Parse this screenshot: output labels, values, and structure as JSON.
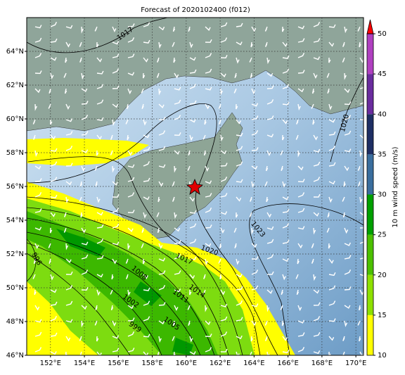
{
  "map": {
    "title": "Forecast of 2020102400 (f012)",
    "xlim": [
      150.6,
      170.45
    ],
    "ylim": [
      46,
      66
    ],
    "xticks": [
      {
        "value": 152,
        "label": "152°E"
      },
      {
        "value": 154,
        "label": "154°E"
      },
      {
        "value": 156,
        "label": "156°E"
      },
      {
        "value": 158,
        "label": "158°E"
      },
      {
        "value": 160,
        "label": "160°E"
      },
      {
        "value": 162,
        "label": "162°E"
      },
      {
        "value": 164,
        "label": "164°E"
      },
      {
        "value": 166,
        "label": "166°E"
      },
      {
        "value": 168,
        "label": "168°E"
      },
      {
        "value": 170,
        "label": "170°E"
      }
    ],
    "yticks": [
      {
        "value": 46,
        "label": "46°N"
      },
      {
        "value": 48,
        "label": "48°N"
      },
      {
        "value": 50,
        "label": "50°N"
      },
      {
        "value": 52,
        "label": "52°N"
      },
      {
        "value": 54,
        "label": "54°N"
      },
      {
        "value": 56,
        "label": "56°N"
      },
      {
        "value": 58,
        "label": "58°N"
      },
      {
        "value": 60,
        "label": "60°N"
      },
      {
        "value": 62,
        "label": "62°N"
      },
      {
        "value": 64,
        "label": "64°N"
      }
    ],
    "contour_labels": [
      "1017",
      "1020",
      "1023",
      "996",
      "1008",
      "1017",
      "1020",
      "1014",
      "1011",
      "1002",
      "1005",
      "999"
    ],
    "colorbar": {
      "label": "10 m wind speed (m/s)",
      "lim": [
        10,
        50
      ],
      "ticks": [
        10,
        15,
        20,
        25,
        30,
        35,
        40,
        45,
        50
      ],
      "colors": [
        "#ffff00",
        "#8ee000",
        "#4cc000",
        "#00a000",
        "#3a6e9e",
        "#1e2e64",
        "#6a2c9e",
        "#b040c0"
      ],
      "extend_color": "#ff0000"
    }
  }
}
